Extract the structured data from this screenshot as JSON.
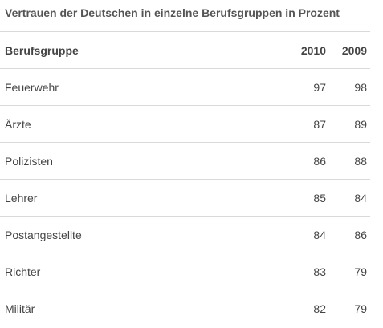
{
  "table": {
    "title": "Vertrauen der Deutschen in einzelne Berufsgruppen in Prozent",
    "headers": [
      "Berufsgruppe",
      "2010",
      "2009"
    ],
    "rows": [
      [
        "Feuerwehr",
        "97",
        "98"
      ],
      [
        "Ärzte",
        "87",
        "89"
      ],
      [
        "Polizisten",
        "86",
        "88"
      ],
      [
        "Lehrer",
        "85",
        "84"
      ],
      [
        "Postangestellte",
        "84",
        "86"
      ],
      [
        "Richter",
        "83",
        "79"
      ],
      [
        "Militär",
        "82",
        "79"
      ]
    ]
  }
}
